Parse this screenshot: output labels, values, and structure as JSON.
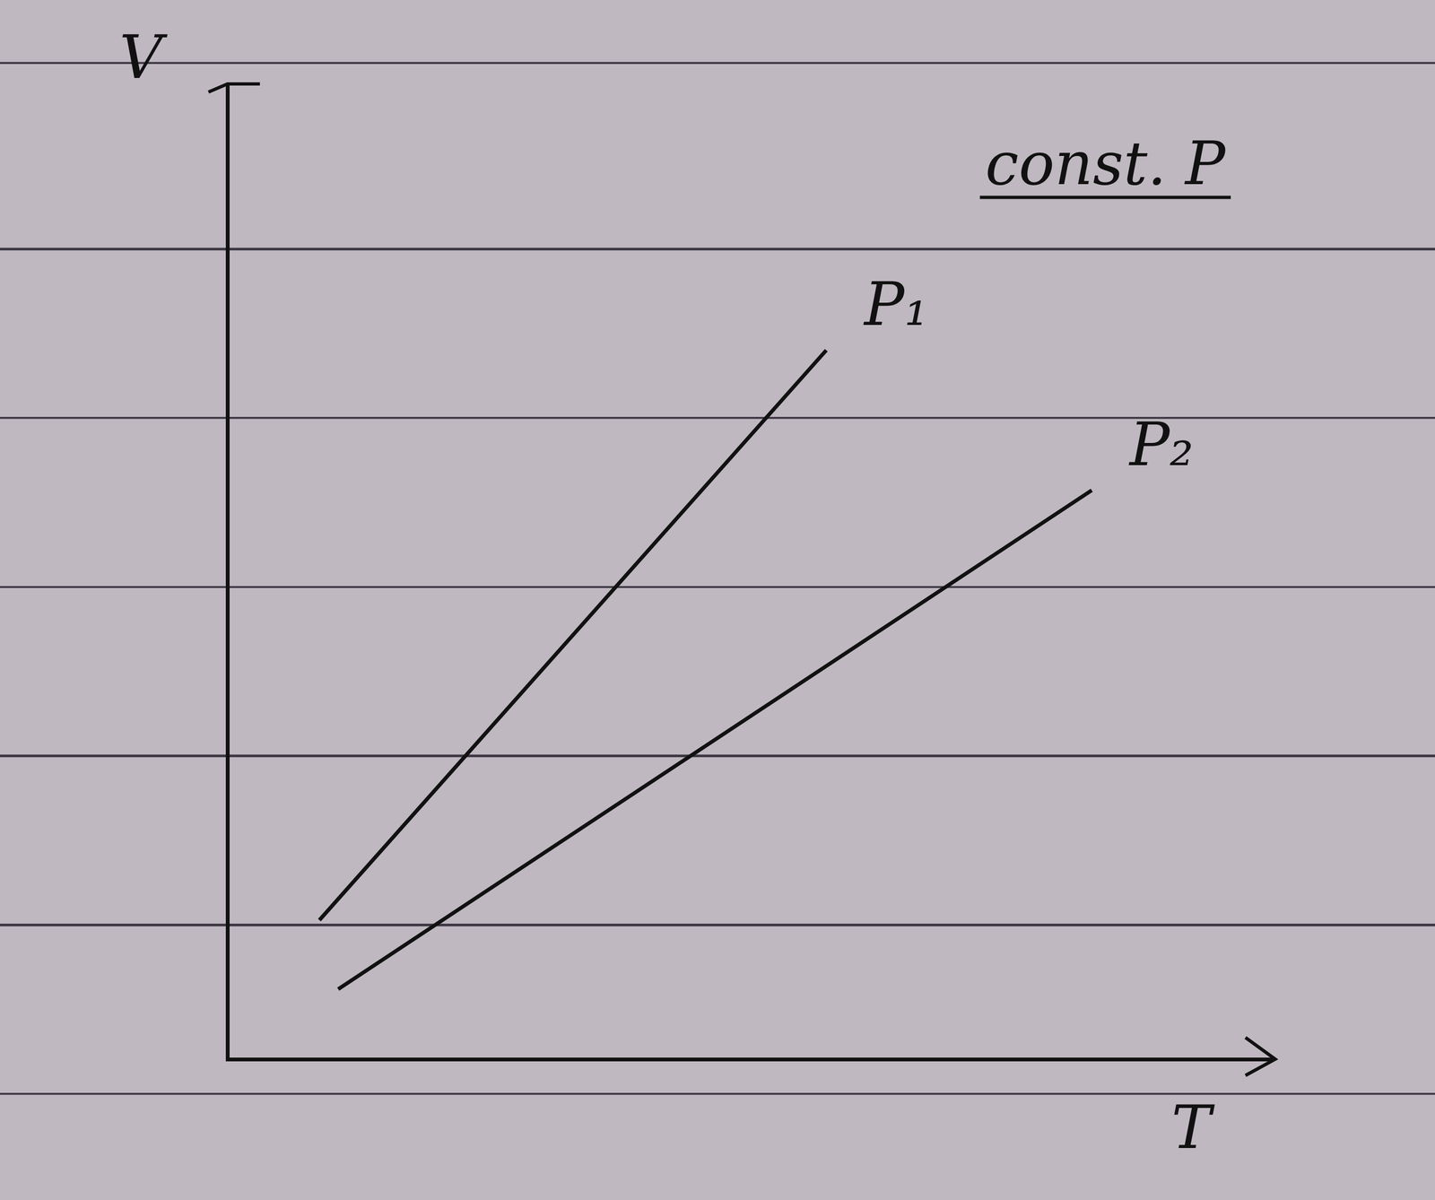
{
  "chart_data": {
    "type": "line",
    "x_label": "T",
    "y_label": "V",
    "annotations": [
      "const. P"
    ],
    "series": [
      {
        "name": "P₁",
        "color": "#111111",
        "line_style": "solid",
        "x": [
          0.88,
          5.73
        ],
        "values": [
          1.43,
          7.29
        ]
      },
      {
        "name": "P₂",
        "color": "#111111",
        "line_style": "solid",
        "x": [
          1.06,
          8.27
        ],
        "values": [
          0.72,
          5.85
        ]
      }
    ],
    "xlim": [
      0,
      10
    ],
    "ylim": [
      0,
      10
    ],
    "grid": false,
    "tick_labels": false
  }
}
